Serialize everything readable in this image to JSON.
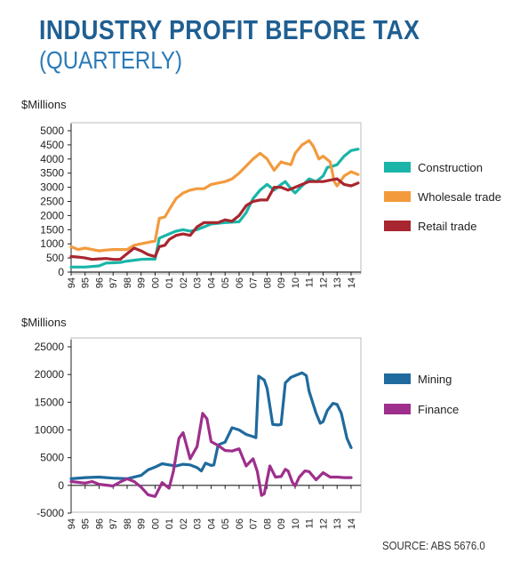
{
  "title": "INDUSTRY PROFIT BEFORE TAX",
  "subtitle": "(QUARTERLY)",
  "source": "SOURCE: ABS 5676.0",
  "chart_data": [
    {
      "type": "line",
      "ylabel": "$Millions",
      "ylim": [
        0,
        5000
      ],
      "yticks": [
        0,
        500,
        1000,
        1500,
        2000,
        2500,
        3000,
        3500,
        4000,
        4500,
        5000
      ],
      "xlim": [
        1994,
        2014.7
      ],
      "xticks": [
        "94",
        "95",
        "96",
        "97",
        "98",
        "99",
        "00",
        "01",
        "02",
        "03",
        "04",
        "05",
        "06",
        "07",
        "08",
        "09",
        "10",
        "11",
        "12",
        "13",
        "14"
      ],
      "legend_position": "right",
      "series": [
        {
          "name": "Construction",
          "color": "#1ab5a8",
          "points": [
            [
              1994,
              180
            ],
            [
              1995,
              180
            ],
            [
              1996,
              220
            ],
            [
              1996.5,
              320
            ],
            [
              1997.5,
              340
            ],
            [
              1998,
              390
            ],
            [
              1999,
              450
            ],
            [
              1999.5,
              460
            ],
            [
              2000,
              460
            ],
            [
              2000.3,
              1200
            ],
            [
              2001,
              1350
            ],
            [
              2001.5,
              1450
            ],
            [
              2002,
              1500
            ],
            [
              2002.5,
              1450
            ],
            [
              2003,
              1500
            ],
            [
              2003.5,
              1600
            ],
            [
              2004,
              1700
            ],
            [
              2005,
              1750
            ],
            [
              2006,
              1780
            ],
            [
              2006.5,
              2100
            ],
            [
              2007,
              2600
            ],
            [
              2007.5,
              2900
            ],
            [
              2008,
              3100
            ],
            [
              2008.5,
              2900
            ],
            [
              2009,
              3100
            ],
            [
              2009.3,
              3200
            ],
            [
              2009.7,
              2950
            ],
            [
              2010,
              2800
            ],
            [
              2010.5,
              3050
            ],
            [
              2011,
              3300
            ],
            [
              2011.5,
              3200
            ],
            [
              2012,
              3400
            ],
            [
              2012.3,
              3700
            ],
            [
              2012.7,
              3750
            ],
            [
              2013,
              3800
            ],
            [
              2013.5,
              4100
            ],
            [
              2014,
              4300
            ],
            [
              2014.5,
              4350
            ]
          ]
        },
        {
          "name": "Wholesale trade",
          "color": "#f39a3d",
          "points": [
            [
              1994,
              900
            ],
            [
              1994.5,
              800
            ],
            [
              1995,
              850
            ],
            [
              1995.5,
              800
            ],
            [
              1996,
              750
            ],
            [
              1996.5,
              780
            ],
            [
              1997,
              800
            ],
            [
              1997.5,
              800
            ],
            [
              1998,
              800
            ],
            [
              1998.5,
              950
            ],
            [
              1999,
              1000
            ],
            [
              1999.5,
              1050
            ],
            [
              2000,
              1100
            ],
            [
              2000.3,
              1900
            ],
            [
              2000.7,
              1950
            ],
            [
              2001,
              2200
            ],
            [
              2001.5,
              2600
            ],
            [
              2002,
              2800
            ],
            [
              2002.5,
              2900
            ],
            [
              2003,
              2950
            ],
            [
              2003.5,
              2950
            ],
            [
              2004,
              3100
            ],
            [
              2004.5,
              3150
            ],
            [
              2005,
              3200
            ],
            [
              2005.5,
              3300
            ],
            [
              2006,
              3500
            ],
            [
              2006.5,
              3750
            ],
            [
              2007,
              4000
            ],
            [
              2007.5,
              4200
            ],
            [
              2008,
              4000
            ],
            [
              2008.5,
              3600
            ],
            [
              2009,
              3900
            ],
            [
              2009.3,
              3850
            ],
            [
              2009.7,
              3800
            ],
            [
              2010,
              4200
            ],
            [
              2010.5,
              4500
            ],
            [
              2011,
              4650
            ],
            [
              2011.3,
              4450
            ],
            [
              2011.7,
              4000
            ],
            [
              2012,
              4100
            ],
            [
              2012.5,
              3900
            ],
            [
              2012.8,
              3200
            ],
            [
              2013,
              3050
            ],
            [
              2013.5,
              3400
            ],
            [
              2014,
              3550
            ],
            [
              2014.5,
              3450
            ]
          ]
        },
        {
          "name": "Retail trade",
          "color": "#a8262f",
          "points": [
            [
              1994,
              550
            ],
            [
              1994.5,
              530
            ],
            [
              1995,
              500
            ],
            [
              1995.5,
              450
            ],
            [
              1996,
              470
            ],
            [
              1996.5,
              480
            ],
            [
              1997,
              450
            ],
            [
              1997.5,
              450
            ],
            [
              1998,
              650
            ],
            [
              1998.5,
              850
            ],
            [
              1999,
              750
            ],
            [
              1999.5,
              620
            ],
            [
              2000,
              550
            ],
            [
              2000.3,
              900
            ],
            [
              2000.7,
              950
            ],
            [
              2001,
              1150
            ],
            [
              2001.5,
              1300
            ],
            [
              2002,
              1350
            ],
            [
              2002.5,
              1300
            ],
            [
              2003,
              1600
            ],
            [
              2003.5,
              1750
            ],
            [
              2004,
              1750
            ],
            [
              2004.5,
              1750
            ],
            [
              2005,
              1850
            ],
            [
              2005.5,
              1800
            ],
            [
              2006,
              2000
            ],
            [
              2006.5,
              2350
            ],
            [
              2007,
              2500
            ],
            [
              2007.5,
              2550
            ],
            [
              2008,
              2550
            ],
            [
              2008.5,
              3000
            ],
            [
              2009,
              3000
            ],
            [
              2009.5,
              2900
            ],
            [
              2010,
              3000
            ],
            [
              2010.5,
              3100
            ],
            [
              2011,
              3200
            ],
            [
              2011.5,
              3200
            ],
            [
              2012,
              3200
            ],
            [
              2012.5,
              3250
            ],
            [
              2013,
              3300
            ],
            [
              2013.5,
              3100
            ],
            [
              2014,
              3050
            ],
            [
              2014.5,
              3150
            ]
          ]
        }
      ]
    },
    {
      "type": "line",
      "ylabel": "$Millions",
      "ylim": [
        -5000,
        25000
      ],
      "yticks": [
        -5000,
        0,
        5000,
        10000,
        15000,
        20000,
        25000
      ],
      "xlim": [
        1994,
        2014.7
      ],
      "xticks": [
        "94",
        "95",
        "96",
        "97",
        "98",
        "99",
        "00",
        "01",
        "02",
        "03",
        "04",
        "05",
        "06",
        "07",
        "08",
        "09",
        "10",
        "11",
        "12",
        "13",
        "14"
      ],
      "legend_position": "right",
      "series": [
        {
          "name": "Mining",
          "color": "#1f6a9e",
          "points": [
            [
              1994,
              1200
            ],
            [
              1995,
              1400
            ],
            [
              1996,
              1500
            ],
            [
              1997,
              1300
            ],
            [
              1998,
              1200
            ],
            [
              1999,
              1800
            ],
            [
              1999.5,
              2800
            ],
            [
              2000,
              3300
            ],
            [
              2000.5,
              3900
            ],
            [
              2001,
              3700
            ],
            [
              2001.5,
              3500
            ],
            [
              2002,
              3800
            ],
            [
              2002.5,
              3700
            ],
            [
              2003,
              3200
            ],
            [
              2003.3,
              2600
            ],
            [
              2003.6,
              4000
            ],
            [
              2004,
              3600
            ],
            [
              2004.2,
              3700
            ],
            [
              2004.5,
              7300
            ],
            [
              2005,
              7800
            ],
            [
              2005.5,
              10400
            ],
            [
              2006,
              10000
            ],
            [
              2006.5,
              9200
            ],
            [
              2007,
              8800
            ],
            [
              2007.2,
              8600
            ],
            [
              2007.4,
              19700
            ],
            [
              2007.8,
              19000
            ],
            [
              2008,
              17500
            ],
            [
              2008.4,
              11000
            ],
            [
              2008.8,
              10900
            ],
            [
              2009,
              11000
            ],
            [
              2009.3,
              18500
            ],
            [
              2009.7,
              19500
            ],
            [
              2010,
              19800
            ],
            [
              2010.5,
              20300
            ],
            [
              2010.8,
              19800
            ],
            [
              2011,
              17000
            ],
            [
              2011.5,
              13000
            ],
            [
              2011.8,
              11200
            ],
            [
              2012,
              11500
            ],
            [
              2012.3,
              13500
            ],
            [
              2012.7,
              14800
            ],
            [
              2013,
              14600
            ],
            [
              2013.3,
              13000
            ],
            [
              2013.7,
              8500
            ],
            [
              2014,
              6800
            ]
          ]
        },
        {
          "name": "Finance",
          "color": "#9e2f8c",
          "points": [
            [
              1994,
              700
            ],
            [
              1995,
              400
            ],
            [
              1995.5,
              700
            ],
            [
              1996,
              200
            ],
            [
              1997,
              -100
            ],
            [
              1997.5,
              600
            ],
            [
              1998,
              1200
            ],
            [
              1998.5,
              700
            ],
            [
              1999,
              -300
            ],
            [
              1999.5,
              -1700
            ],
            [
              2000,
              -2000
            ],
            [
              2000.5,
              500
            ],
            [
              2001,
              -500
            ],
            [
              2001.3,
              2500
            ],
            [
              2001.7,
              8500
            ],
            [
              2002,
              9500
            ],
            [
              2002.5,
              4800
            ],
            [
              2003,
              7000
            ],
            [
              2003.4,
              13000
            ],
            [
              2003.7,
              12000
            ],
            [
              2004,
              7900
            ],
            [
              2004.5,
              7200
            ],
            [
              2005,
              6300
            ],
            [
              2005.5,
              6200
            ],
            [
              2006,
              6600
            ],
            [
              2006.5,
              3500
            ],
            [
              2007,
              4800
            ],
            [
              2007.3,
              2500
            ],
            [
              2007.6,
              -1800
            ],
            [
              2007.8,
              -1500
            ],
            [
              2008.2,
              3500
            ],
            [
              2008.6,
              1500
            ],
            [
              2009,
              1600
            ],
            [
              2009.3,
              2900
            ],
            [
              2009.5,
              2600
            ],
            [
              2009.8,
              600
            ],
            [
              2010,
              -100
            ],
            [
              2010.3,
              1500
            ],
            [
              2010.7,
              2600
            ],
            [
              2011,
              2500
            ],
            [
              2011.5,
              1000
            ],
            [
              2012,
              2300
            ],
            [
              2012.5,
              1500
            ],
            [
              2013,
              1500
            ],
            [
              2013.5,
              1400
            ],
            [
              2014,
              1400
            ]
          ]
        }
      ]
    }
  ]
}
